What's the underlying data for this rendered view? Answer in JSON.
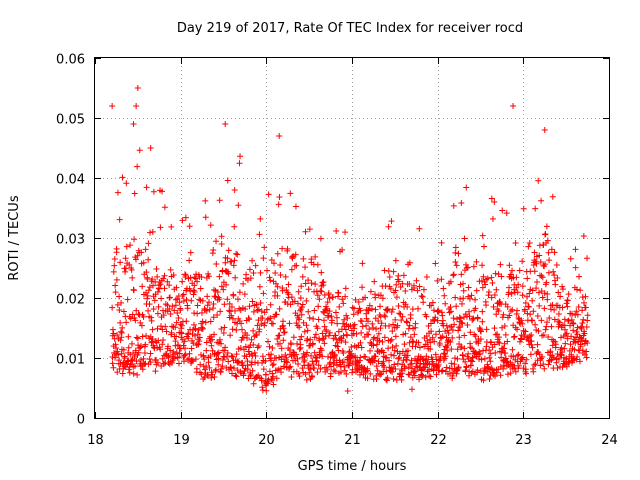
{
  "chart_data": {
    "type": "scatter",
    "title": "Day 219 of 2017, Rate Of TEC Index for receiver rocd",
    "xlabel": "GPS time / hours",
    "ylabel": "ROTI / TECUs",
    "xlim": [
      18,
      24
    ],
    "ylim": [
      0,
      0.06
    ],
    "xticks": [
      18,
      19,
      20,
      21,
      22,
      23,
      24
    ],
    "yticks": [
      0,
      0.01,
      0.02,
      0.03,
      0.04,
      0.05,
      0.06
    ],
    "ytick_labels": [
      "0",
      "0.01",
      "0.02",
      "0.03",
      "0.04",
      "0.05",
      "0.06"
    ],
    "grid": true,
    "marker": "+",
    "series_color": "#ff0000",
    "x_range_of_points": [
      18.2,
      23.75
    ],
    "notable_points": [
      {
        "x": 18.2,
        "y": 0.052
      },
      {
        "x": 18.5,
        "y": 0.055
      },
      {
        "x": 18.48,
        "y": 0.052
      },
      {
        "x": 18.45,
        "y": 0.049
      },
      {
        "x": 18.65,
        "y": 0.045
      },
      {
        "x": 19.52,
        "y": 0.049
      },
      {
        "x": 20.15,
        "y": 0.047
      },
      {
        "x": 22.88,
        "y": 0.052
      },
      {
        "x": 23.25,
        "y": 0.048
      },
      {
        "x": 20.95,
        "y": 0.0045
      },
      {
        "x": 21.7,
        "y": 0.0048
      }
    ],
    "envelope": [
      {
        "x": 18.2,
        "low": 0.008,
        "high": 0.043
      },
      {
        "x": 18.5,
        "low": 0.008,
        "high": 0.045
      },
      {
        "x": 18.8,
        "low": 0.009,
        "high": 0.039
      },
      {
        "x": 19.0,
        "low": 0.01,
        "high": 0.034
      },
      {
        "x": 19.3,
        "low": 0.007,
        "high": 0.038
      },
      {
        "x": 19.5,
        "low": 0.008,
        "high": 0.048
      },
      {
        "x": 19.8,
        "low": 0.007,
        "high": 0.04
      },
      {
        "x": 20.0,
        "low": 0.005,
        "high": 0.036
      },
      {
        "x": 20.2,
        "low": 0.008,
        "high": 0.043
      },
      {
        "x": 20.5,
        "low": 0.007,
        "high": 0.041
      },
      {
        "x": 20.8,
        "low": 0.008,
        "high": 0.031
      },
      {
        "x": 21.0,
        "low": 0.008,
        "high": 0.03
      },
      {
        "x": 21.3,
        "low": 0.007,
        "high": 0.031
      },
      {
        "x": 21.5,
        "low": 0.007,
        "high": 0.039
      },
      {
        "x": 21.8,
        "low": 0.007,
        "high": 0.032
      },
      {
        "x": 22.0,
        "low": 0.008,
        "high": 0.029
      },
      {
        "x": 22.2,
        "low": 0.007,
        "high": 0.043
      },
      {
        "x": 22.5,
        "low": 0.007,
        "high": 0.038
      },
      {
        "x": 22.8,
        "low": 0.008,
        "high": 0.034
      },
      {
        "x": 23.0,
        "low": 0.008,
        "high": 0.04
      },
      {
        "x": 23.25,
        "low": 0.009,
        "high": 0.047
      },
      {
        "x": 23.5,
        "low": 0.009,
        "high": 0.028
      },
      {
        "x": 23.75,
        "low": 0.011,
        "high": 0.03
      }
    ],
    "typical_level": 0.015
  }
}
